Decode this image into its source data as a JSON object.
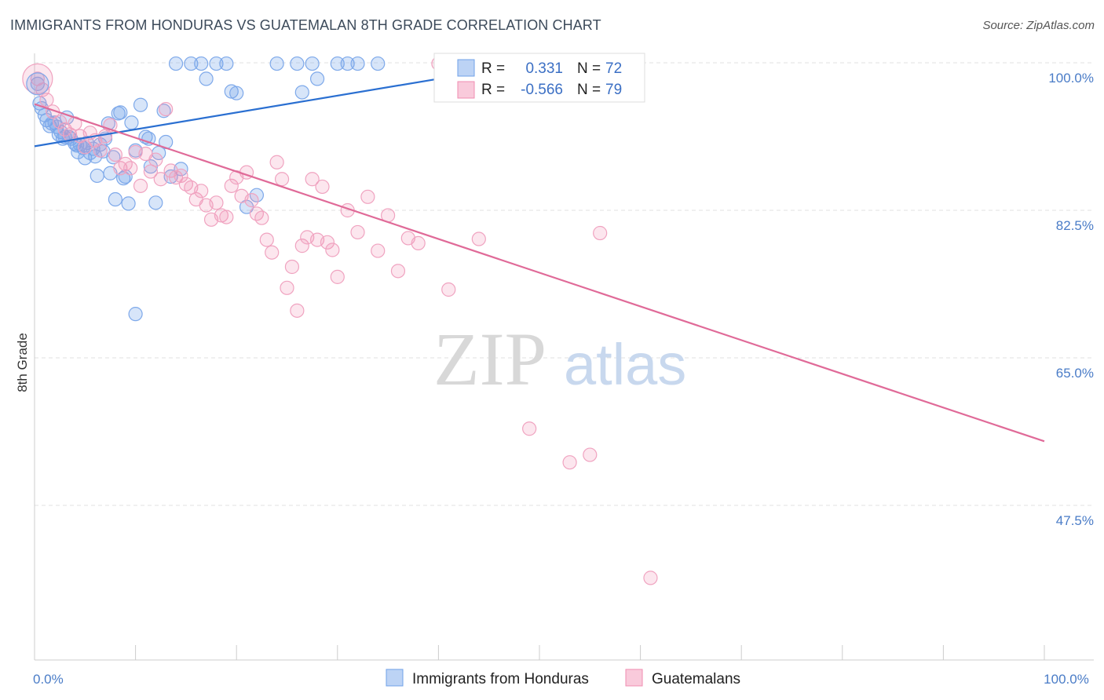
{
  "title": "IMMIGRANTS FROM HONDURAS VS GUATEMALAN 8TH GRADE CORRELATION CHART",
  "source": "Source: ZipAtlas.com",
  "watermark": {
    "zip": "ZIP",
    "atlas": "atlas"
  },
  "legend": {
    "r_label": "R =",
    "n_label": "N =",
    "rows": [
      {
        "r": "0.331",
        "n": "72",
        "color": "#6fa0e8"
      },
      {
        "r": "-0.566",
        "n": "79",
        "color": "#f08cb0"
      }
    ]
  },
  "bottom_legend": [
    "Immigrants from Honduras",
    "Guatemalans"
  ],
  "chart_data": {
    "type": "scatter",
    "ylabel": "8th Grade",
    "xlim": [
      0,
      100
    ],
    "ylim": [
      30,
      100
    ],
    "y_ticks": [
      {
        "value": 100,
        "label": "100.0%"
      },
      {
        "value": 82.5,
        "label": "82.5%"
      },
      {
        "value": 65,
        "label": "65.0%"
      },
      {
        "value": 47.5,
        "label": "47.5%"
      }
    ],
    "x_tick_labels": [
      {
        "value": 0,
        "label": "0.0%"
      },
      {
        "value": 100,
        "label": "100.0%"
      }
    ],
    "grid": true,
    "series": [
      {
        "name": "Immigrants from Honduras",
        "color": "#6fa0e8",
        "trend": {
          "x": [
            0,
            49
          ],
          "y": [
            90.1,
            99.9
          ]
        },
        "points": [
          [
            0.3,
            97.5
          ],
          [
            0.5,
            95.2
          ],
          [
            0.7,
            94.6
          ],
          [
            1.0,
            93.8
          ],
          [
            1.2,
            93.2
          ],
          [
            1.5,
            92.5
          ],
          [
            1.7,
            92.8
          ],
          [
            2.0,
            92.9
          ],
          [
            2.2,
            92.4
          ],
          [
            2.4,
            91.5
          ],
          [
            2.6,
            91.8
          ],
          [
            2.8,
            91.0
          ],
          [
            3.0,
            91.2
          ],
          [
            3.2,
            93.5
          ],
          [
            3.4,
            91.2
          ],
          [
            3.6,
            91.0
          ],
          [
            4.0,
            90.4
          ],
          [
            4.2,
            90.2
          ],
          [
            4.3,
            89.4
          ],
          [
            4.5,
            90.3
          ],
          [
            4.8,
            89.9
          ],
          [
            5.0,
            88.7
          ],
          [
            5.2,
            90.5
          ],
          [
            5.5,
            89.3
          ],
          [
            5.8,
            89.8
          ],
          [
            6.0,
            88.9
          ],
          [
            6.2,
            86.6
          ],
          [
            6.5,
            90.3
          ],
          [
            6.8,
            89.5
          ],
          [
            7.0,
            91.0
          ],
          [
            7.3,
            92.8
          ],
          [
            7.5,
            86.9
          ],
          [
            7.8,
            88.8
          ],
          [
            8.0,
            83.8
          ],
          [
            8.3,
            94.0
          ],
          [
            8.5,
            94.1
          ],
          [
            8.8,
            86.3
          ],
          [
            9.0,
            86.5
          ],
          [
            9.3,
            83.3
          ],
          [
            9.6,
            92.9
          ],
          [
            10.0,
            89.6
          ],
          [
            10.5,
            95.0
          ],
          [
            11.0,
            91.2
          ],
          [
            11.3,
            91.0
          ],
          [
            11.5,
            87.7
          ],
          [
            12.0,
            83.4
          ],
          [
            12.3,
            89.3
          ],
          [
            12.8,
            94.3
          ],
          [
            13.0,
            90.6
          ],
          [
            13.5,
            86.5
          ],
          [
            14.0,
            99.9
          ],
          [
            14.5,
            87.4
          ],
          [
            15.5,
            99.9
          ],
          [
            16.5,
            99.9
          ],
          [
            17.0,
            98.1
          ],
          [
            18.0,
            99.9
          ],
          [
            19.0,
            99.9
          ],
          [
            19.5,
            96.6
          ],
          [
            20.0,
            96.4
          ],
          [
            21.0,
            82.9
          ],
          [
            22.0,
            84.3
          ],
          [
            24.0,
            99.9
          ],
          [
            26.0,
            99.9
          ],
          [
            26.5,
            96.5
          ],
          [
            27.5,
            99.9
          ],
          [
            28.0,
            98.1
          ],
          [
            30.0,
            99.9
          ],
          [
            31.0,
            99.9
          ],
          [
            32.0,
            99.9
          ],
          [
            34.0,
            99.9
          ],
          [
            42.0,
            99.9
          ],
          [
            10.0,
            70.2
          ]
        ]
      },
      {
        "name": "Guatemalans",
        "color": "#f08cb0",
        "trend": {
          "x": [
            0,
            100
          ],
          "y": [
            95.1,
            55.1
          ]
        },
        "points": [
          [
            0.3,
            98.1
          ],
          [
            0.8,
            96.8
          ],
          [
            1.2,
            95.6
          ],
          [
            1.8,
            94.2
          ],
          [
            2.5,
            93.0
          ],
          [
            3.0,
            92.1
          ],
          [
            3.5,
            91.5
          ],
          [
            4.0,
            92.8
          ],
          [
            4.5,
            91.3
          ],
          [
            5.0,
            90.0
          ],
          [
            5.5,
            91.7
          ],
          [
            6.0,
            90.8
          ],
          [
            6.5,
            89.6
          ],
          [
            7.0,
            91.3
          ],
          [
            7.5,
            92.6
          ],
          [
            8.0,
            89.1
          ],
          [
            8.5,
            87.5
          ],
          [
            9.0,
            88.0
          ],
          [
            9.5,
            87.5
          ],
          [
            10.0,
            89.4
          ],
          [
            10.5,
            85.4
          ],
          [
            11.0,
            89.2
          ],
          [
            11.5,
            87.1
          ],
          [
            12.0,
            88.5
          ],
          [
            12.5,
            86.2
          ],
          [
            13.0,
            94.5
          ],
          [
            13.5,
            87.2
          ],
          [
            14.0,
            86.4
          ],
          [
            14.5,
            86.6
          ],
          [
            15.0,
            85.6
          ],
          [
            15.5,
            85.2
          ],
          [
            16.0,
            83.8
          ],
          [
            16.5,
            84.8
          ],
          [
            17.0,
            83.1
          ],
          [
            17.5,
            81.4
          ],
          [
            18.0,
            83.4
          ],
          [
            18.5,
            81.9
          ],
          [
            19.0,
            81.7
          ],
          [
            19.5,
            85.4
          ],
          [
            20.0,
            86.4
          ],
          [
            20.5,
            84.2
          ],
          [
            21.0,
            87.0
          ],
          [
            21.5,
            83.7
          ],
          [
            22.0,
            82.1
          ],
          [
            22.5,
            81.6
          ],
          [
            23.0,
            79.0
          ],
          [
            23.5,
            77.5
          ],
          [
            24.0,
            88.2
          ],
          [
            24.5,
            86.2
          ],
          [
            25.0,
            73.3
          ],
          [
            25.5,
            75.8
          ],
          [
            26.0,
            70.6
          ],
          [
            26.5,
            78.3
          ],
          [
            27.0,
            79.3
          ],
          [
            27.5,
            86.2
          ],
          [
            28.0,
            79.0
          ],
          [
            28.5,
            85.3
          ],
          [
            29.0,
            78.7
          ],
          [
            29.5,
            77.8
          ],
          [
            30.0,
            74.6
          ],
          [
            31.0,
            82.5
          ],
          [
            32.0,
            79.9
          ],
          [
            33.0,
            84.1
          ],
          [
            34.0,
            77.7
          ],
          [
            35.0,
            81.9
          ],
          [
            36.0,
            75.3
          ],
          [
            37.0,
            79.2
          ],
          [
            38.0,
            78.6
          ],
          [
            40.0,
            99.9
          ],
          [
            41.0,
            73.1
          ],
          [
            42.5,
            99.9
          ],
          [
            44.0,
            79.1
          ],
          [
            45.0,
            99.9
          ],
          [
            47.0,
            98.3
          ],
          [
            49.0,
            56.6
          ],
          [
            53.0,
            52.6
          ],
          [
            55.0,
            53.5
          ],
          [
            56.0,
            79.8
          ],
          [
            61.0,
            38.9
          ]
        ]
      }
    ]
  }
}
